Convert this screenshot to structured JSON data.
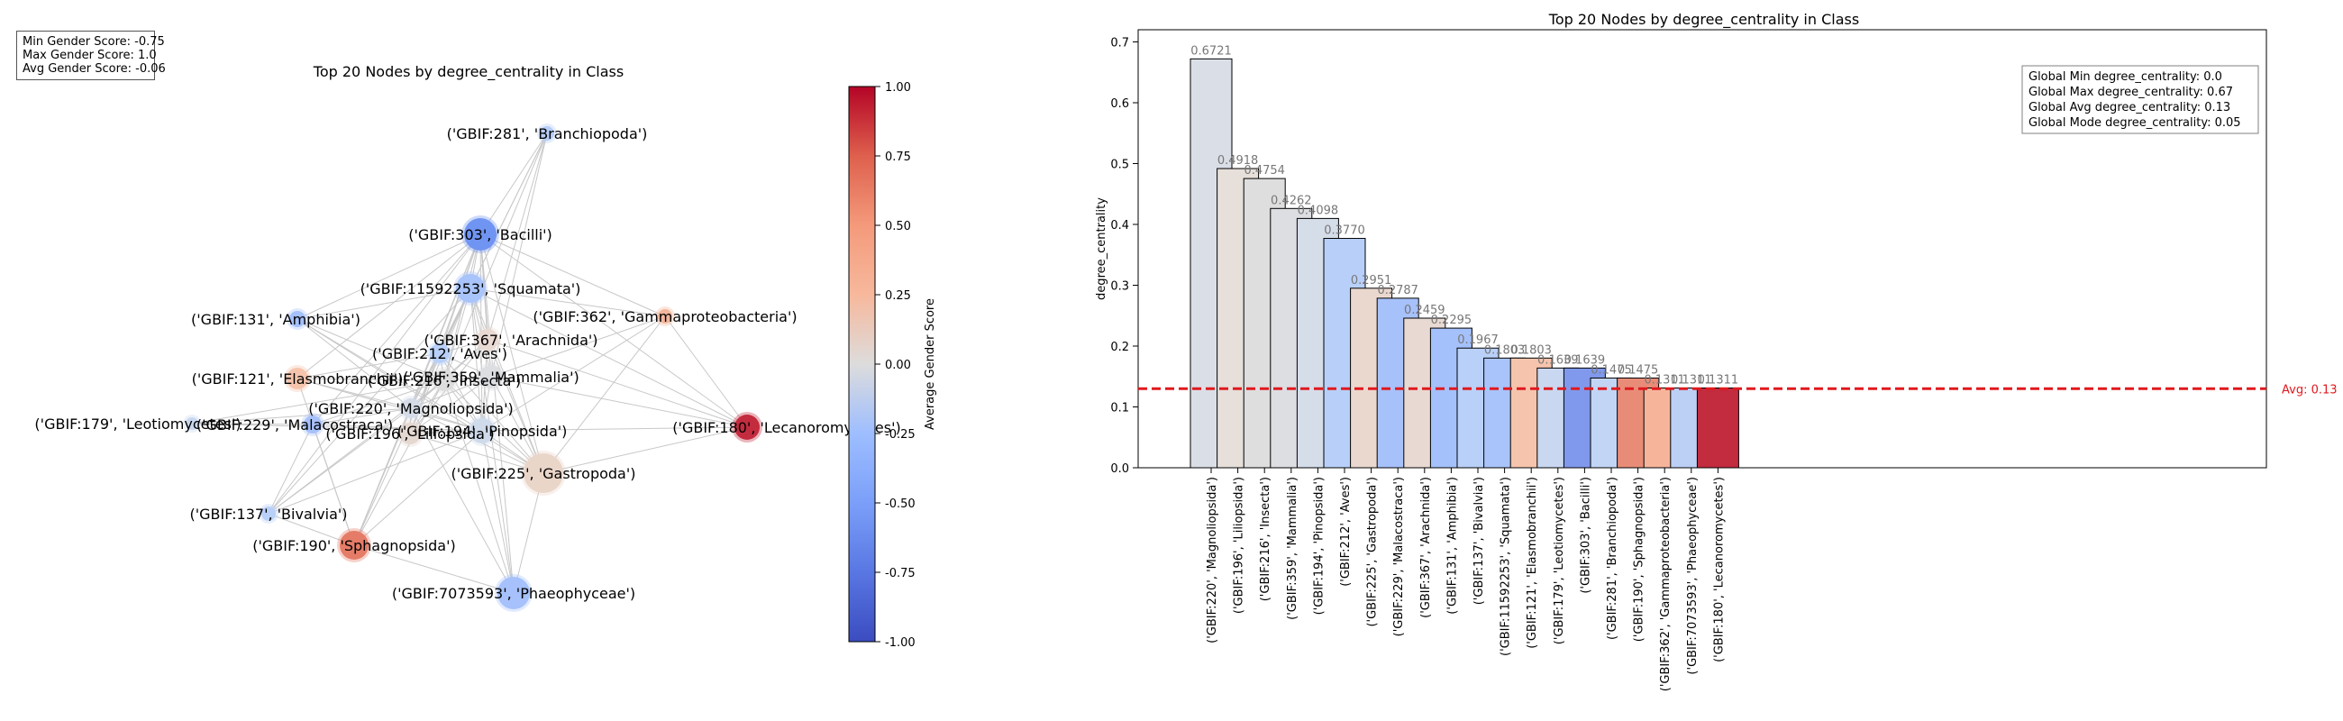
{
  "gender_stats": {
    "min": "Min Gender Score: -0.75",
    "max": "Max Gender Score: 1.0",
    "avg": "Avg Gender Score: -0.06"
  },
  "network": {
    "title": "Top 20 Nodes by degree_centrality in Class",
    "colorbar": {
      "label": "Average Gender Score",
      "ticks": [
        "1.00",
        "0.75",
        "0.50",
        "0.25",
        "0.00",
        "-0.25",
        "-0.50",
        "-0.75",
        "-1.00"
      ]
    },
    "nodes": [
      {
        "label": "('GBIF:281', 'Branchiopoda')",
        "color": "#b6cdf8"
      },
      {
        "label": "('GBIF:303', 'Bacilli')",
        "color": "#7094f2"
      },
      {
        "label": "('GBIF:11592253', 'Squamata')",
        "color": "#a9c4fa"
      },
      {
        "label": "('GBIF:131', 'Amphibia')",
        "color": "#a5c1fb"
      },
      {
        "label": "('GBIF:362', 'Gammaproteobacteria')",
        "color": "#f3b69c"
      },
      {
        "label": "('GBIF:367', 'Arachnida')",
        "color": "#e8d9d3"
      },
      {
        "label": "('GBIF:212', 'Aves')",
        "color": "#b8d0f9"
      },
      {
        "label": "('GBIF:121', 'Elasmobranchii')",
        "color": "#f6c4ad"
      },
      {
        "label": "('GBIF:359', 'Mammalia')",
        "color": "#dcdee2"
      },
      {
        "label": "('GBIF:216', 'Insecta')",
        "color": "#dddddd"
      },
      {
        "label": "('GBIF:220', 'Magnoliopsida')",
        "color": "#d5dce8"
      },
      {
        "label": "('GBIF:179', 'Leotiomycetes')",
        "color": "#c9d8f0"
      },
      {
        "label": "('GBIF:229', 'Malacostraca')",
        "color": "#a7c1fb"
      },
      {
        "label": "('GBIF:194', 'Pinopsida')",
        "color": "#cfdaea"
      },
      {
        "label": "('GBIF:196', 'Liliopsida')",
        "color": "#e5d8d1"
      },
      {
        "label": "('GBIF:180', 'Lecanoromycetes')",
        "color": "#c32b3e"
      },
      {
        "label": "('GBIF:225', 'Gastropoda')",
        "color": "#ead5c9"
      },
      {
        "label": "('GBIF:137', 'Bivalvia')",
        "color": "#b9d0f8"
      },
      {
        "label": "('GBIF:190', 'Sphagnopsida')",
        "color": "#e57c67"
      },
      {
        "label": "('GBIF:7073593', 'Phaeophyceae')",
        "color": "#a6c1fb"
      }
    ]
  },
  "chart_data": {
    "type": "bar",
    "title": "Top 20 Nodes by degree_centrality in Class",
    "xlabel": "",
    "ylabel": "degree_centrality",
    "ylim": [
      0,
      0.72
    ],
    "yticks": [
      "0.0",
      "0.1",
      "0.2",
      "0.3",
      "0.4",
      "0.5",
      "0.6",
      "0.7"
    ],
    "grid": false,
    "categories": [
      "('GBIF:220', 'Magnoliopsida')",
      "('GBIF:196', 'Liliopsida')",
      "('GBIF:216', 'Insecta')",
      "('GBIF:359', 'Mammalia')",
      "('GBIF:194', 'Pinopsida')",
      "('GBIF:212', 'Aves')",
      "('GBIF:225', 'Gastropoda')",
      "('GBIF:229', 'Malacostraca')",
      "('GBIF:367', 'Arachnida')",
      "('GBIF:131', 'Amphibia')",
      "('GBIF:137', 'Bivalvia')",
      "('GBIF:11592253', 'Squamata')",
      "('GBIF:121', 'Elasmobranchii')",
      "('GBIF:179', 'Leotiomycetes')",
      "('GBIF:303', 'Bacilli')",
      "('GBIF:281', 'Branchiopoda')",
      "('GBIF:190', 'Sphagnopsida')",
      "('GBIF:362', 'Gammaproteobacteria')",
      "('GBIF:7073593', 'Phaeophyceae')",
      "('GBIF:180', 'Lecanoromycetes')"
    ],
    "values": [
      0.6721,
      0.4918,
      0.4754,
      0.4262,
      0.4098,
      0.377,
      0.2951,
      0.2787,
      0.2459,
      0.2295,
      0.1967,
      0.1803,
      0.1803,
      0.1639,
      0.1639,
      0.1475,
      0.1475,
      0.1311,
      0.1311,
      0.1311
    ],
    "value_labels": [
      "0.6721",
      "0.4918",
      "0.4754",
      "0.4262",
      "0.4098",
      "0.3770",
      "0.2951",
      "0.2787",
      "0.2459",
      "0.2295",
      "0.1967",
      "0.1803",
      "0.1803",
      "0.1639",
      "0.1639",
      "0.1475",
      "0.1475",
      "0.1311",
      "0.1311",
      "0.1311"
    ],
    "bar_colors": [
      "#dadfe7",
      "#e6dfda",
      "#dedede",
      "#dcdee2",
      "#d5dde9",
      "#b8d0f9",
      "#ead8cf",
      "#a7c1fb",
      "#e8d9d3",
      "#a5c1fb",
      "#b9d0f8",
      "#a9c4fa",
      "#f6c4ad",
      "#c9d8f0",
      "#8099ec",
      "#c2d5f5",
      "#e88c78",
      "#f6b59b",
      "#bccff4",
      "#c32b3e"
    ],
    "average_line": {
      "value": 0.13,
      "label": "Avg: 0.13",
      "color": "#e0191e"
    },
    "annotation": [
      "Global Min degree_centrality: 0.0",
      "Global Max degree_centrality: 0.67",
      "Global Avg degree_centrality: 0.13",
      "Global Mode degree_centrality: 0.05"
    ]
  }
}
